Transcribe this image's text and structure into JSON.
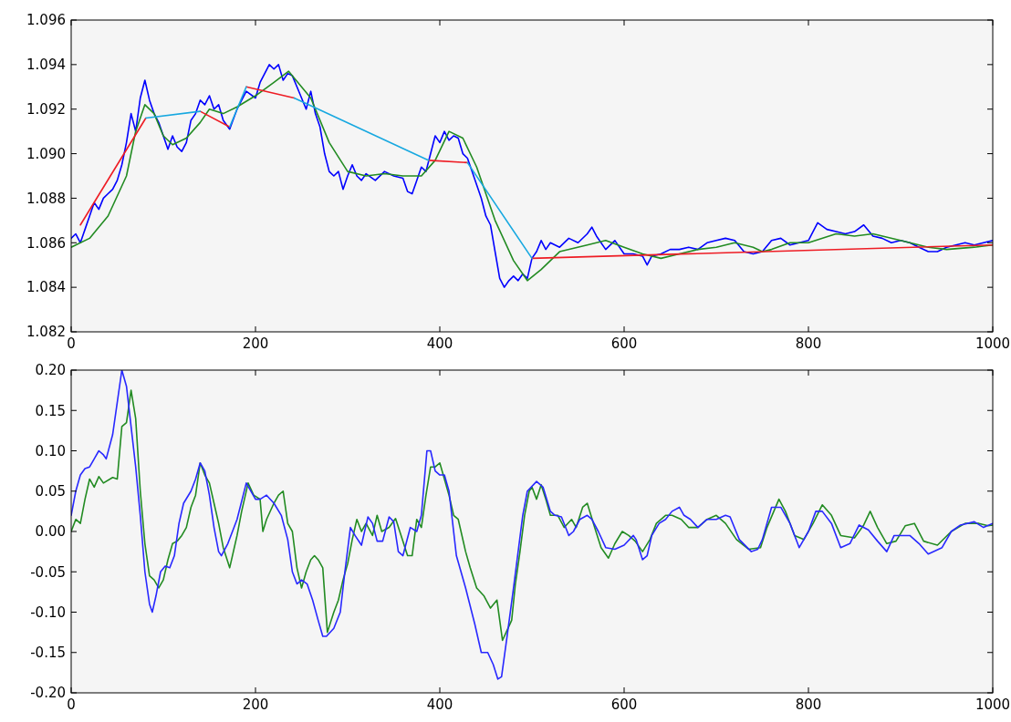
{
  "chart_data": [
    {
      "type": "line",
      "xlim": [
        0,
        1000
      ],
      "ylim": [
        1.082,
        1.096
      ],
      "xticks": [
        0,
        200,
        400,
        600,
        800,
        1000
      ],
      "yticks": [
        {
          "value": 1.082,
          "label": "1.082"
        },
        {
          "value": 1.084,
          "label": "1.084"
        },
        {
          "value": 1.086,
          "label": "1.086"
        },
        {
          "value": 1.088,
          "label": "1.088"
        },
        {
          "value": 1.09,
          "label": "1.090"
        },
        {
          "value": 1.092,
          "label": "1.092"
        },
        {
          "value": 1.094,
          "label": "1.094"
        },
        {
          "value": 1.096,
          "label": "1.096"
        }
      ],
      "series": [
        {
          "color": "#0000ff",
          "x": [
            0,
            5,
            10,
            15,
            20,
            25,
            30,
            35,
            40,
            45,
            50,
            55,
            60,
            65,
            70,
            75,
            80,
            85,
            90,
            95,
            100,
            105,
            110,
            115,
            120,
            125,
            130,
            135,
            140,
            145,
            150,
            155,
            160,
            165,
            172,
            180,
            190,
            200,
            205,
            210,
            215,
            220,
            225,
            230,
            235,
            240,
            245,
            250,
            255,
            260,
            265,
            270,
            275,
            280,
            285,
            290,
            295,
            300,
            305,
            310,
            315,
            320,
            330,
            340,
            350,
            360,
            365,
            370,
            375,
            380,
            385,
            390,
            395,
            400,
            405,
            410,
            415,
            420,
            425,
            430,
            435,
            440,
            445,
            450,
            455,
            460,
            465,
            470,
            475,
            480,
            485,
            490,
            495,
            500,
            505,
            510,
            515,
            520,
            530,
            540,
            550,
            560,
            565,
            570,
            580,
            590,
            600,
            610,
            620,
            625,
            630,
            640,
            650,
            660,
            670,
            680,
            690,
            700,
            710,
            720,
            730,
            740,
            750,
            760,
            770,
            780,
            790,
            800,
            810,
            820,
            830,
            840,
            850,
            860,
            870,
            880,
            890,
            900,
            910,
            920,
            930,
            940,
            950,
            960,
            970,
            980,
            990,
            1000
          ],
          "values": [
            1.0862,
            1.0864,
            1.086,
            1.0866,
            1.0872,
            1.0878,
            1.0875,
            1.088,
            1.0882,
            1.0884,
            1.0888,
            1.0895,
            1.0905,
            1.0918,
            1.091,
            1.0925,
            1.0933,
            1.0924,
            1.0918,
            1.0914,
            1.0908,
            1.0902,
            1.0908,
            1.0903,
            1.0901,
            1.0905,
            1.0915,
            1.0918,
            1.0924,
            1.0922,
            1.0926,
            1.092,
            1.0922,
            1.0915,
            1.0911,
            1.092,
            1.0928,
            1.0925,
            1.0932,
            1.0936,
            1.094,
            1.0938,
            1.094,
            1.0933,
            1.0936,
            1.0935,
            1.093,
            1.0925,
            1.092,
            1.0928,
            1.0918,
            1.0912,
            1.09,
            1.0892,
            1.089,
            1.0892,
            1.0884,
            1.089,
            1.0895,
            1.089,
            1.0888,
            1.0891,
            1.0888,
            1.0892,
            1.089,
            1.0889,
            1.0883,
            1.0882,
            1.0888,
            1.0894,
            1.0892,
            1.09,
            1.0908,
            1.0905,
            1.091,
            1.0906,
            1.0908,
            1.0907,
            1.09,
            1.0898,
            1.0892,
            1.0886,
            1.088,
            1.0872,
            1.0868,
            1.0856,
            1.0844,
            1.084,
            1.0843,
            1.0845,
            1.0843,
            1.0846,
            1.0844,
            1.0853,
            1.0856,
            1.0861,
            1.0857,
            1.086,
            1.0858,
            1.0862,
            1.086,
            1.0864,
            1.0867,
            1.0863,
            1.0857,
            1.0861,
            1.0855,
            1.0855,
            1.0854,
            1.085,
            1.0854,
            1.0855,
            1.0857,
            1.0857,
            1.0858,
            1.0857,
            1.086,
            1.0861,
            1.0862,
            1.0861,
            1.0856,
            1.0855,
            1.0856,
            1.0861,
            1.0862,
            1.0859,
            1.086,
            1.0861,
            1.0869,
            1.0866,
            1.0865,
            1.0864,
            1.0865,
            1.0868,
            1.0863,
            1.0862,
            1.086,
            1.0861,
            1.086,
            1.0858,
            1.0856,
            1.0856,
            1.0858,
            1.0859,
            1.086,
            1.0859,
            1.086,
            1.0861
          ]
        },
        {
          "color": "#228b22",
          "x": [
            0,
            20,
            40,
            60,
            70,
            80,
            90,
            100,
            110,
            125,
            140,
            150,
            165,
            180,
            200,
            220,
            236,
            260,
            280,
            300,
            320,
            340,
            360,
            380,
            395,
            410,
            425,
            440,
            460,
            480,
            495,
            510,
            530,
            560,
            580,
            600,
            620,
            640,
            660,
            680,
            700,
            720,
            740,
            750,
            760,
            780,
            800,
            830,
            850,
            870,
            900,
            930,
            950,
            980,
            1000
          ],
          "values": [
            1.0858,
            1.0862,
            1.0872,
            1.089,
            1.091,
            1.0922,
            1.0918,
            1.0908,
            1.0904,
            1.0907,
            1.0914,
            1.092,
            1.0918,
            1.0921,
            1.0926,
            1.0932,
            1.0937,
            1.0925,
            1.0905,
            1.0892,
            1.089,
            1.0891,
            1.089,
            1.089,
            1.0897,
            1.091,
            1.0907,
            1.0894,
            1.087,
            1.0852,
            1.0843,
            1.0848,
            1.0856,
            1.0859,
            1.0861,
            1.0858,
            1.0855,
            1.0853,
            1.0855,
            1.0857,
            1.0858,
            1.086,
            1.0858,
            1.0856,
            1.0857,
            1.086,
            1.086,
            1.0864,
            1.0863,
            1.0864,
            1.0861,
            1.0858,
            1.0857,
            1.0858,
            1.0859
          ]
        },
        {
          "color": "#ee1c24",
          "x": [
            10,
            81,
            110,
            140,
            172,
            181,
            190,
            242,
            315,
            388,
            430,
            465,
            500,
            1000
          ],
          "values": [
            1.0868,
            1.0916,
            null,
            1.0919,
            1.0912,
            null,
            1.093,
            1.0925,
            null,
            1.0897,
            1.0896,
            null,
            1.0853,
            1.0859
          ]
        },
        {
          "color": "#17a8e0",
          "x": [
            81,
            140,
            156,
            172,
            190,
            216,
            242,
            388,
            409,
            430,
            500
          ],
          "values": [
            1.0916,
            1.0919,
            null,
            1.0912,
            1.093,
            null,
            1.0925,
            1.0897,
            null,
            1.0896,
            1.0853
          ]
        }
      ]
    },
    {
      "type": "line",
      "xlim": [
        0,
        1000
      ],
      "ylim": [
        -0.2,
        0.2
      ],
      "xticks": [
        0,
        200,
        400,
        600,
        800,
        1000
      ],
      "yticks": [
        {
          "value": -0.2,
          "label": "-0.20"
        },
        {
          "value": -0.15,
          "label": "-0.15"
        },
        {
          "value": -0.1,
          "label": "-0.10"
        },
        {
          "value": -0.05,
          "label": "-0.05"
        },
        {
          "value": 0,
          "label": "0.00"
        },
        {
          "value": 0.05,
          "label": "0.05"
        },
        {
          "value": 0.1,
          "label": "0.10"
        },
        {
          "value": 0.15,
          "label": "0.15"
        },
        {
          "value": 0.2,
          "label": "0.20"
        }
      ],
      "series": [
        {
          "color": "#228b22",
          "x": [
            0,
            5,
            10,
            15,
            20,
            25,
            30,
            35,
            45,
            50,
            55,
            60,
            65,
            70,
            75,
            80,
            85,
            90,
            95,
            100,
            105,
            110,
            115,
            120,
            125,
            130,
            135,
            140,
            145,
            150,
            155,
            160,
            165,
            172,
            180,
            185,
            192,
            198,
            205,
            208,
            212,
            220,
            225,
            230,
            235,
            240,
            245,
            250,
            255,
            260,
            264,
            268,
            273,
            278,
            285,
            290,
            295,
            300,
            305,
            310,
            315,
            320,
            327,
            332,
            337,
            345,
            352,
            358,
            365,
            370,
            375,
            380,
            385,
            390,
            395,
            400,
            405,
            410,
            415,
            420,
            428,
            433,
            440,
            448,
            455,
            462,
            468,
            472,
            478,
            482,
            487,
            492,
            497,
            500,
            505,
            510,
            515,
            520,
            528,
            535,
            543,
            548,
            555,
            560,
            568,
            575,
            583,
            590,
            598,
            605,
            612,
            620,
            628,
            635,
            645,
            652,
            662,
            670,
            680,
            690,
            700,
            710,
            722,
            735,
            748,
            755,
            768,
            775,
            785,
            795,
            805,
            815,
            825,
            835,
            850,
            860,
            867,
            875,
            885,
            895,
            905,
            915,
            925,
            940,
            955,
            970,
            985,
            995,
            1000
          ],
          "values": [
            0,
            0.015,
            0.01,
            0.04,
            0.065,
            0.055,
            0.068,
            0.06,
            0.067,
            0.065,
            0.13,
            0.135,
            0.175,
            0.14,
            0.05,
            -0.015,
            -0.055,
            -0.06,
            -0.07,
            -0.06,
            -0.035,
            -0.015,
            -0.012,
            -0.005,
            0.005,
            0.03,
            0.045,
            0.085,
            0.07,
            0.06,
            0.035,
            0.01,
            -0.02,
            -0.045,
            -0.005,
            0.025,
            0.06,
            0.045,
            0.04,
            0,
            0.015,
            0.035,
            0.045,
            0.05,
            0.01,
            0,
            -0.045,
            -0.07,
            -0.05,
            -0.035,
            -0.03,
            -0.035,
            -0.045,
            -0.125,
            -0.1,
            -0.085,
            -0.06,
            -0.04,
            -0.01,
            0.015,
            0,
            0.01,
            -0.005,
            0.02,
            0,
            0.005,
            0.016,
            -0.005,
            -0.03,
            -0.03,
            0.015,
            0.005,
            0.045,
            0.08,
            0.08,
            0.085,
            0.065,
            0.045,
            0.02,
            0.015,
            -0.025,
            -0.045,
            -0.07,
            -0.08,
            -0.095,
            -0.085,
            -0.135,
            -0.125,
            -0.11,
            -0.065,
            -0.025,
            0.02,
            0.05,
            0.055,
            0.04,
            0.058,
            0.04,
            0.02,
            0.02,
            0.005,
            0.015,
            0.005,
            0.03,
            0.035,
            0.005,
            -0.02,
            -0.033,
            -0.015,
            0,
            -0.005,
            -0.012,
            -0.025,
            -0.01,
            0.01,
            0.02,
            0.02,
            0.015,
            0.005,
            0.005,
            0.015,
            0.02,
            0.01,
            -0.01,
            -0.022,
            -0.02,
            0.005,
            0.04,
            0.025,
            -0.005,
            -0.01,
            0.01,
            0.033,
            0.02,
            -0.005,
            -0.008,
            0.008,
            0.025,
            0.005,
            -0.015,
            -0.012,
            0.007,
            0.01,
            -0.012,
            -0.017,
            0,
            0.01,
            0.01,
            0.007,
            0.008
          ]
        },
        {
          "color": "#2828ff",
          "x": [
            0,
            5,
            10,
            15,
            20,
            25,
            30,
            35,
            38,
            45,
            50,
            55,
            60,
            65,
            70,
            75,
            80,
            85,
            88,
            92,
            97,
            102,
            107,
            112,
            117,
            122,
            130,
            135,
            140,
            145,
            150,
            155,
            160,
            163,
            170,
            180,
            190,
            200,
            205,
            212,
            220,
            228,
            235,
            240,
            245,
            250,
            256,
            262,
            268,
            273,
            277,
            285,
            292,
            297,
            303,
            308,
            315,
            322,
            327,
            332,
            338,
            345,
            350,
            355,
            360,
            368,
            375,
            380,
            386,
            390,
            395,
            400,
            405,
            410,
            418,
            428,
            438,
            445,
            452,
            458,
            463,
            467,
            473,
            480,
            490,
            495,
            505,
            512,
            520,
            525,
            532,
            540,
            545,
            552,
            560,
            565,
            572,
            580,
            590,
            600,
            610,
            613,
            620,
            625,
            630,
            638,
            645,
            652,
            660,
            665,
            672,
            680,
            690,
            700,
            710,
            715,
            725,
            738,
            745,
            750,
            760,
            770,
            780,
            790,
            800,
            808,
            815,
            825,
            835,
            845,
            855,
            865,
            875,
            885,
            893,
            910,
            920,
            930,
            945,
            955,
            965,
            980,
            990,
            1000
          ],
          "values": [
            0.02,
            0.05,
            0.07,
            0.078,
            0.08,
            0.09,
            0.1,
            0.095,
            0.09,
            0.12,
            0.16,
            0.2,
            0.18,
            0.13,
            0.08,
            0.02,
            -0.05,
            -0.09,
            -0.1,
            -0.08,
            -0.05,
            -0.043,
            -0.045,
            -0.03,
            0.01,
            0.035,
            0.05,
            0.065,
            0.085,
            0.075,
            0.045,
            0.005,
            -0.025,
            -0.03,
            -0.015,
            0.015,
            0.06,
            0.04,
            0.04,
            0.045,
            0.035,
            0.02,
            -0.01,
            -0.05,
            -0.065,
            -0.06,
            -0.065,
            -0.085,
            -0.11,
            -0.13,
            -0.13,
            -0.12,
            -0.1,
            -0.05,
            0.005,
            -0.005,
            -0.017,
            0.018,
            0.01,
            -0.012,
            -0.012,
            0.018,
            0.012,
            -0.025,
            -0.03,
            0.005,
            0,
            0.02,
            0.1,
            0.1,
            0.075,
            0.07,
            0.07,
            0.05,
            -0.03,
            -0.07,
            -0.115,
            -0.15,
            -0.15,
            -0.165,
            -0.183,
            -0.18,
            -0.13,
            -0.07,
            0.02,
            0.05,
            0.062,
            0.055,
            0.025,
            0.02,
            0.018,
            -0.005,
            0,
            0.015,
            0.02,
            0.015,
            0,
            -0.02,
            -0.022,
            -0.017,
            -0.005,
            -0.01,
            -0.035,
            -0.03,
            -0.005,
            0.01,
            0.015,
            0.025,
            0.03,
            0.02,
            0.015,
            0.005,
            0.015,
            0.015,
            0.02,
            0.018,
            -0.01,
            -0.025,
            -0.022,
            -0.01,
            0.03,
            0.03,
            0.01,
            -0.02,
            0,
            0.025,
            0.025,
            0.01,
            -0.02,
            -0.015,
            0.008,
            0.002,
            -0.012,
            -0.025,
            -0.005,
            -0.005,
            -0.015,
            -0.028,
            -0.02,
            0,
            0.008,
            0.012,
            0.005,
            0.01
          ]
        }
      ]
    }
  ]
}
